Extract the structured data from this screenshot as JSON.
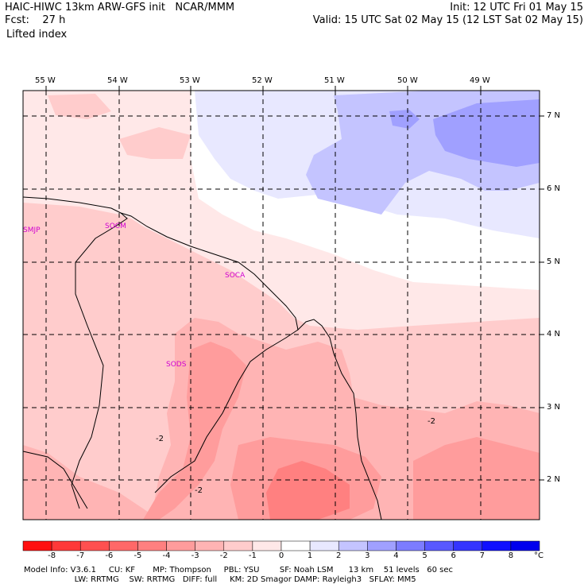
{
  "header": {
    "model_title": "HAIC-HIWC 13km ARW-GFS init   NCAR/MMM",
    "forecast": "Fcst:    27 h",
    "field": "Lifted index",
    "init": "Init: 12 UTC Fri 01 May 15",
    "valid": "Valid: 15 UTC Sat 02 May 15 (12 LST Sat 02 May 15)"
  },
  "map": {
    "longitude_labels": [
      "55 W",
      "54 W",
      "53 W",
      "52 W",
      "51 W",
      "50 W",
      "49 W"
    ],
    "latitude_labels": [
      "7 N",
      "6 N",
      "5 N",
      "4 N",
      "3 N",
      "2 N"
    ],
    "stations": [
      "SMJP",
      "SOCM",
      "SOCA",
      "SODS"
    ],
    "contour_labels": [
      "-2",
      "-2",
      "-2"
    ]
  },
  "colorbar": {
    "ticks": [
      "-8",
      "-7",
      "-6",
      "-5",
      "-4",
      "-3",
      "-2",
      "-1",
      "0",
      "1",
      "2",
      "3",
      "4",
      "5",
      "6",
      "7",
      "8"
    ],
    "unit": "°C",
    "colors": [
      "#ff1010",
      "#ff3838",
      "#ff5050",
      "#ff6868",
      "#ff8080",
      "#ff9c9c",
      "#ffb4b4",
      "#ffcccc",
      "#ffe8e8",
      "#ffffff",
      "#e8e8ff",
      "#c4c4ff",
      "#a0a0ff",
      "#7c7cff",
      "#5858ff",
      "#3434ff",
      "#1010ff",
      "#0000ee"
    ]
  },
  "footer": {
    "line1": "Model Info: V3.6.1     CU: KF       MP: Thompson     PBL: YSU        SF: Noah LSM      13 km    51 levels   60 sec",
    "line2": "                    LW: RRTMG    SW: RRTMG   DIFF: full     KM: 2D Smagor DAMP: Rayleigh3   SFLAY: MM5"
  }
}
